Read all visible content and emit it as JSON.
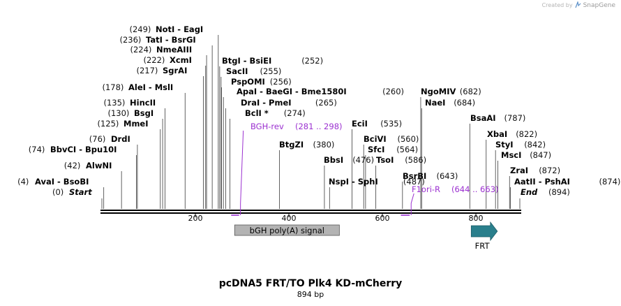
{
  "header": {
    "credit_text": "Created by",
    "brand": "SnapGene"
  },
  "map": {
    "title": "pcDNA5 FRT/TO Plk4 KD-mCherry",
    "length_label": "894 bp",
    "length_bp": 894,
    "ticks": [
      200,
      400,
      600,
      800
    ]
  },
  "start_marker": {
    "pos": "(0)",
    "name": "Start",
    "bp": 0
  },
  "end_marker": {
    "pos": "(894)",
    "name": "End",
    "bp": 894
  },
  "sites": [
    {
      "bp": 4,
      "pos": "(4)",
      "names": [
        "AvaI",
        "BsoBI"
      ],
      "bold": false
    },
    {
      "bp": 42,
      "pos": "(42)",
      "names": [
        "AlwNI"
      ]
    },
    {
      "bp": 74,
      "pos": "(74)",
      "names": [
        "BbvCI",
        "Bpu10I"
      ]
    },
    {
      "bp": 76,
      "pos": "(76)",
      "names": [
        "DrdI"
      ]
    },
    {
      "bp": 125,
      "pos": "(125)",
      "names": [
        "MmeI"
      ]
    },
    {
      "bp": 130,
      "pos": "(130)",
      "names": [
        "BsgI"
      ]
    },
    {
      "bp": 135,
      "pos": "(135)",
      "names": [
        "HincII"
      ]
    },
    {
      "bp": 178,
      "pos": "(178)",
      "names": [
        "AleI",
        "MslI"
      ]
    },
    {
      "bp": 217,
      "pos": "(217)",
      "names": [
        "SgrAI"
      ]
    },
    {
      "bp": 222,
      "pos": "(222)",
      "names": [
        "XcmI"
      ]
    },
    {
      "bp": 224,
      "pos": "(224)",
      "names": [
        "NmeAIII"
      ]
    },
    {
      "bp": 236,
      "pos": "(236)",
      "names": [
        "TatI",
        "BsrGI"
      ]
    },
    {
      "bp": 249,
      "pos": "(249)",
      "names": [
        "NotI",
        "EagI"
      ]
    },
    {
      "bp": 252,
      "pos": "(252)",
      "names": [
        "BtgI",
        "BsiEI"
      ]
    },
    {
      "bp": 255,
      "pos": "(255)",
      "names": [
        "SacII"
      ]
    },
    {
      "bp": 256,
      "pos": "(256)",
      "names": [
        "PspOMI"
      ]
    },
    {
      "bp": 260,
      "pos": "(260)",
      "names": [
        "ApaI",
        "BaeGI",
        "Bme1580I"
      ]
    },
    {
      "bp": 265,
      "pos": "(265)",
      "names": [
        "DraI",
        "PmeI"
      ]
    },
    {
      "bp": 274,
      "pos": "(274)",
      "names": [
        "BclI *"
      ]
    },
    {
      "bp": 380,
      "pos": "(380)",
      "names": [
        "BtgZI"
      ]
    },
    {
      "bp": 476,
      "pos": "(476)",
      "names": [
        "BbsI"
      ]
    },
    {
      "bp": 487,
      "pos": "(487)",
      "names": [
        "NspI",
        "SphI"
      ]
    },
    {
      "bp": 535,
      "pos": "(535)",
      "names": [
        "EciI"
      ]
    },
    {
      "bp": 560,
      "pos": "(560)",
      "names": [
        "BciVI"
      ]
    },
    {
      "bp": 564,
      "pos": "(564)",
      "names": [
        "SfcI"
      ]
    },
    {
      "bp": 586,
      "pos": "(586)",
      "names": [
        "TsoI"
      ]
    },
    {
      "bp": 643,
      "pos": "(643)",
      "names": [
        "BsrBI"
      ]
    },
    {
      "bp": 682,
      "pos": "(682)",
      "names": [
        "NgoMIV"
      ]
    },
    {
      "bp": 684,
      "pos": "(684)",
      "names": [
        "NaeI"
      ]
    },
    {
      "bp": 787,
      "pos": "(787)",
      "names": [
        "BsaAI"
      ]
    },
    {
      "bp": 822,
      "pos": "(822)",
      "names": [
        "XbaI"
      ]
    },
    {
      "bp": 842,
      "pos": "(842)",
      "names": [
        "StyI"
      ]
    },
    {
      "bp": 847,
      "pos": "(847)",
      "names": [
        "MscI"
      ]
    },
    {
      "bp": 872,
      "pos": "(872)",
      "names": [
        "ZraI"
      ]
    },
    {
      "bp": 874,
      "pos": "(874)",
      "names": [
        "AatII",
        "PshAI"
      ]
    }
  ],
  "primers": [
    {
      "name": "BGH-rev",
      "range": "(281 .. 298)",
      "start_bp": 281,
      "end_bp": 298,
      "strand": "reverse"
    },
    {
      "name": "F1ori-R",
      "range": "(644 .. 663)",
      "start_bp": 644,
      "end_bp": 663,
      "strand": "reverse"
    }
  ],
  "features": [
    {
      "name": "bGH poly(A) signal",
      "start_bp": 284,
      "end_bp": 508,
      "color": "#b3b3b3",
      "type": "box"
    },
    {
      "name": "FRT",
      "start_bp": 796,
      "end_bp": 843,
      "color": "#2a7f8c",
      "type": "arrow"
    }
  ],
  "colors": {
    "primer": "#9b30d0",
    "backbone": "#000000",
    "frt": "#2a7f8c",
    "polya": "#b3b3b3"
  }
}
